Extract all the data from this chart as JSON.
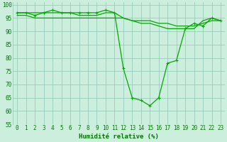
{
  "title": "",
  "xlabel": "Humidité relative (%)",
  "ylabel": "",
  "x": [
    0,
    1,
    2,
    3,
    4,
    5,
    6,
    7,
    8,
    9,
    10,
    11,
    12,
    13,
    14,
    15,
    16,
    17,
    18,
    19,
    20,
    21,
    22,
    23
  ],
  "series1": [
    97,
    97,
    96,
    97,
    98,
    97,
    97,
    97,
    97,
    97,
    98,
    97,
    76,
    65,
    64,
    62,
    65,
    78,
    79,
    91,
    93,
    92,
    95,
    94
  ],
  "series2": [
    97,
    97,
    97,
    97,
    97,
    97,
    97,
    96,
    96,
    96,
    97,
    97,
    95,
    94,
    93,
    93,
    92,
    91,
    91,
    91,
    91,
    94,
    95,
    94
  ],
  "series3": [
    96,
    96,
    95,
    95,
    95,
    95,
    95,
    95,
    95,
    95,
    95,
    95,
    95,
    94,
    94,
    94,
    93,
    93,
    92,
    92,
    92,
    93,
    94,
    94
  ],
  "line_color": "#00aa00",
  "bg_color": "#cceedd",
  "grid_color": "#99ccbb",
  "ylim": [
    55,
    101
  ],
  "yticks": [
    55,
    60,
    65,
    70,
    75,
    80,
    85,
    90,
    95,
    100
  ],
  "xticks": [
    0,
    1,
    2,
    3,
    4,
    5,
    6,
    7,
    8,
    9,
    10,
    11,
    12,
    13,
    14,
    15,
    16,
    17,
    18,
    19,
    20,
    21,
    22,
    23
  ],
  "marker": "+",
  "markersize": 3.5,
  "linewidth": 0.9,
  "xlabel_fontsize": 6.5,
  "tick_fontsize": 5.5,
  "tick_color": "#007700"
}
